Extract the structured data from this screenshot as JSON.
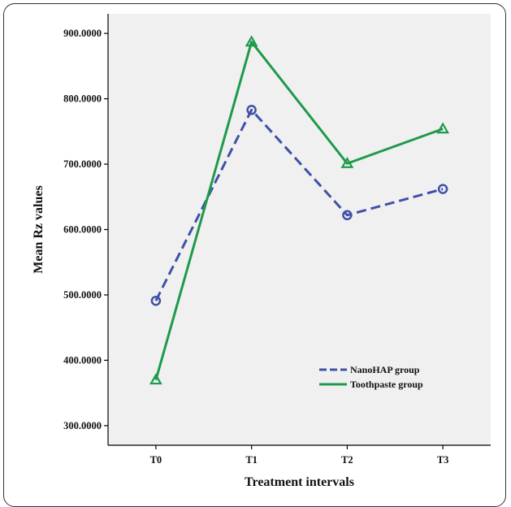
{
  "chart_data": {
    "type": "line",
    "categories": [
      "T0",
      "T1",
      "T2",
      "T3"
    ],
    "xlabel": "Treatment intervals",
    "ylabel": "Mean Rz values",
    "ylim": [
      270,
      930
    ],
    "yticks": [
      "300.0000",
      "400.0000",
      "500.0000",
      "600.0000",
      "700.0000",
      "800.0000",
      "900.0000"
    ],
    "ytick_values": [
      300,
      400,
      500,
      600,
      700,
      800,
      900
    ],
    "grid": false,
    "legend_position": "bottom-right",
    "series": [
      {
        "name": "NanoHAP group",
        "values": [
          491,
          783,
          622,
          662
        ],
        "color": "#3f51a8",
        "marker": "circle",
        "dash": "dashed"
      },
      {
        "name": "Toothpaste group",
        "values": [
          370,
          887,
          701,
          754
        ],
        "color": "#1e9a4a",
        "marker": "triangle",
        "dash": "solid"
      }
    ],
    "plot_background": "#f0f0f0"
  }
}
